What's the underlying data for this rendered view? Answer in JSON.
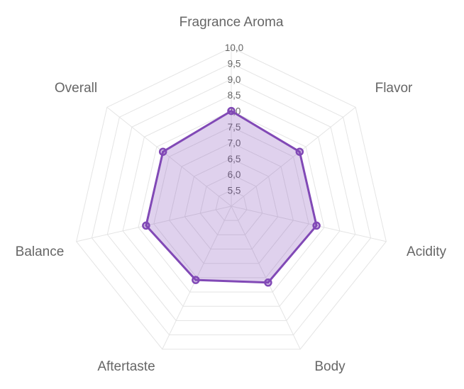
{
  "chart_data": {
    "type": "radar",
    "title": "",
    "axes": [
      "Fragrance Aroma",
      "Flavor",
      "Acidity",
      "Body",
      "Aftertaste",
      "Balance",
      "Overall"
    ],
    "series": [
      {
        "values": [
          8.0,
          7.75,
          7.75,
          7.67,
          7.58,
          7.75,
          7.75
        ]
      }
    ],
    "r_min": 5.0,
    "r_max": 10.0,
    "r_ticks": [
      "5,5",
      "6,0",
      "6,5",
      "7,0",
      "7,5",
      "8,0",
      "8,5",
      "9,0",
      "9,5",
      "10,0"
    ],
    "grid": true,
    "legend": "none",
    "colors": {
      "series_line": "#8149b6",
      "series_fill": "rgba(129, 73, 182, 0.25)",
      "grid": "#e4e4e4",
      "text": "#666666"
    }
  }
}
